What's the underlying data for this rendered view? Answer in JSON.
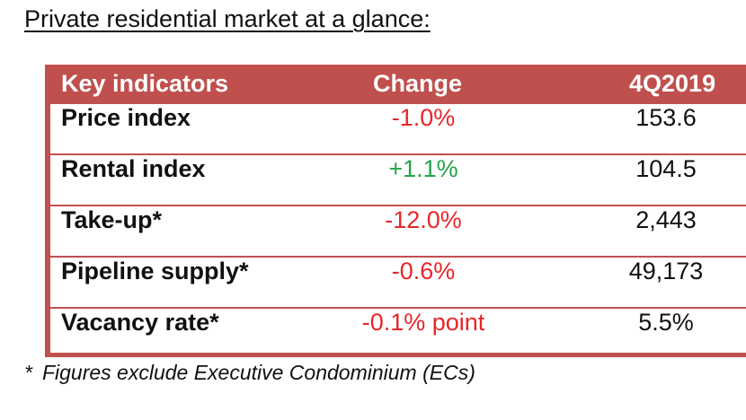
{
  "title": "Private residential market at a glance:",
  "table": {
    "headers": [
      "Key indicators",
      "Change",
      "4Q2019"
    ],
    "rows": [
      {
        "indicator": "Price index",
        "change": "-1.0%",
        "value": "153.6",
        "direction": "down"
      },
      {
        "indicator": "Rental index",
        "change": "+1.1%",
        "value": "104.5",
        "direction": "up"
      },
      {
        "indicator": "Take-up*",
        "change": "-12.0%",
        "value": "2,443",
        "direction": "down"
      },
      {
        "indicator": "Pipeline supply*",
        "change": "-0.6%",
        "value": "49,173",
        "direction": "down"
      },
      {
        "indicator": "Vacancy rate*",
        "change": "-0.1% point",
        "value": "5.5%",
        "direction": "down"
      }
    ]
  },
  "footnote": {
    "marker": "*",
    "text": "Figures exclude Executive Condominium (ECs)"
  },
  "colors": {
    "header_bg": "#c0504d",
    "negative": "#e8262a",
    "positive": "#22a34a"
  }
}
